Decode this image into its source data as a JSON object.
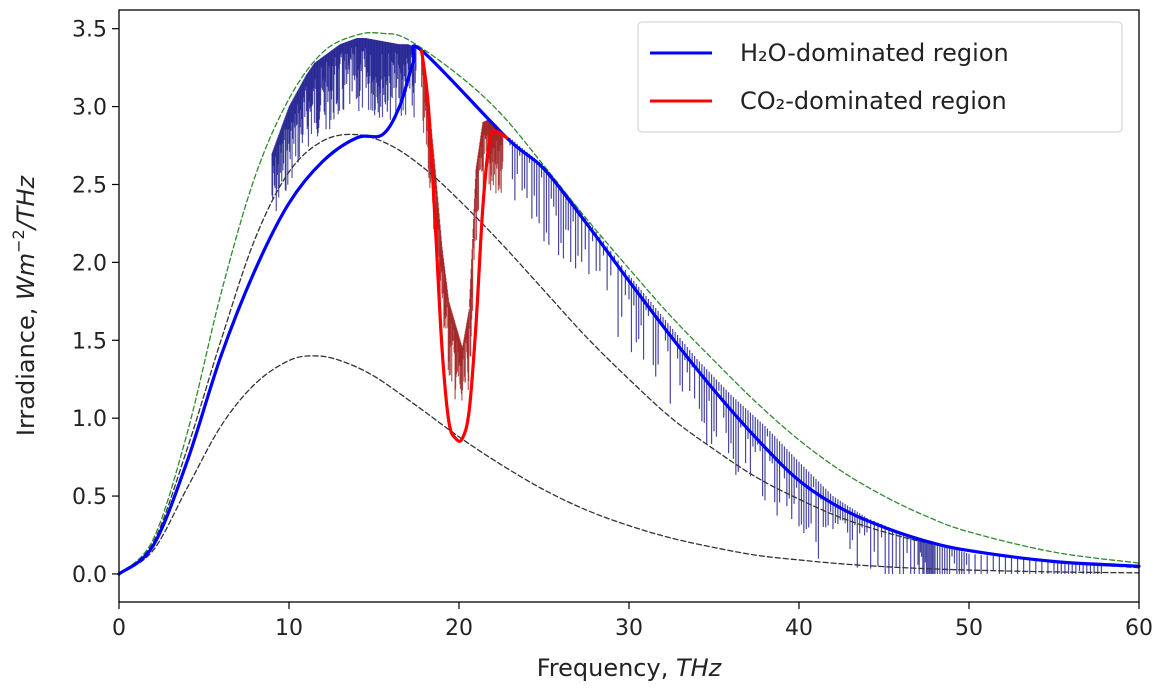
{
  "chart_data": {
    "type": "line",
    "title": "",
    "xlabel": {
      "text": "Frequency, ",
      "unit": "THz"
    },
    "ylabel": {
      "text": "Irradiance, ",
      "unit_base": "Wm",
      "unit_exp": "−2",
      "unit_tail": "/THz"
    },
    "xlim": [
      0,
      60
    ],
    "ylim": [
      -0.18,
      3.62
    ],
    "xticks": [
      0,
      10,
      20,
      30,
      40,
      50,
      60
    ],
    "yticks": [
      0.0,
      0.5,
      1.0,
      1.5,
      2.0,
      2.5,
      3.0,
      3.5
    ],
    "yticks_labels": [
      "0.0",
      "0.5",
      "1.0",
      "1.5",
      "2.0",
      "2.5",
      "3.0",
      "3.5"
    ],
    "grid": false,
    "legend_position": "top-right",
    "series": [
      {
        "name": "H₂O-dominated region",
        "color": "#0000ff",
        "style": "solid",
        "x": [
          0,
          2,
          4,
          6,
          8,
          10,
          12,
          14,
          15.5,
          16.5,
          17.3,
          17.8,
          22.8,
          25,
          27.5,
          30,
          32.5,
          35,
          37.5,
          40,
          42.5,
          45,
          47.5,
          50,
          55,
          60
        ],
        "y": [
          0,
          0.18,
          0.72,
          1.4,
          1.95,
          2.38,
          2.65,
          2.8,
          2.82,
          3.0,
          3.28,
          3.36,
          2.8,
          2.6,
          2.25,
          1.88,
          1.52,
          1.18,
          0.87,
          0.6,
          0.42,
          0.3,
          0.21,
          0.15,
          0.08,
          0.05
        ]
      },
      {
        "name": "CO₂-dominated region",
        "color": "#ff0000",
        "style": "solid",
        "x": [
          17.8,
          18.2,
          18.6,
          19.0,
          19.4,
          19.8,
          20.2,
          20.6,
          21.0,
          21.4,
          21.8,
          22.2,
          22.8
        ],
        "y": [
          3.36,
          3.0,
          2.25,
          1.45,
          0.98,
          0.87,
          0.87,
          1.05,
          1.6,
          2.35,
          2.78,
          2.84,
          2.8
        ]
      },
      {
        "name": "",
        "color": "#2e8b2e",
        "style": "dashed",
        "x": [
          0,
          2,
          4,
          6,
          8,
          10,
          12,
          14,
          15.5,
          17,
          20,
          22.5,
          25,
          27.5,
          30,
          32.5,
          35,
          37.5,
          40,
          42.5,
          45,
          47.5,
          50,
          55,
          60
        ],
        "y": [
          0,
          0.22,
          0.9,
          1.8,
          2.55,
          3.05,
          3.35,
          3.46,
          3.47,
          3.43,
          3.2,
          2.95,
          2.62,
          2.28,
          1.96,
          1.65,
          1.37,
          1.1,
          0.86,
          0.66,
          0.5,
          0.37,
          0.27,
          0.14,
          0.07
        ]
      },
      {
        "name": "",
        "color": "#333333",
        "style": "dashed",
        "x": [
          0,
          2,
          4,
          6,
          8,
          10,
          12,
          14,
          16,
          18,
          20,
          22.5,
          25,
          27.5,
          30,
          32.5,
          35,
          37.5,
          40,
          42.5,
          45,
          47.5,
          50,
          55,
          60
        ],
        "y": [
          0,
          0.2,
          0.8,
          1.5,
          2.15,
          2.58,
          2.78,
          2.82,
          2.75,
          2.6,
          2.4,
          2.12,
          1.82,
          1.52,
          1.25,
          1.0,
          0.8,
          0.62,
          0.48,
          0.36,
          0.27,
          0.2,
          0.15,
          0.08,
          0.04
        ]
      },
      {
        "name": "",
        "color": "#333333",
        "style": "dashed",
        "x": [
          0,
          2,
          4,
          6,
          8,
          10,
          11.5,
          13,
          15,
          17.5,
          20,
          22.5,
          25,
          27.5,
          30,
          32.5,
          35,
          37.5,
          40,
          42.5,
          45,
          47.5,
          50,
          55,
          60
        ],
        "y": [
          0,
          0.15,
          0.55,
          0.95,
          1.22,
          1.37,
          1.4,
          1.37,
          1.27,
          1.08,
          0.88,
          0.7,
          0.54,
          0.41,
          0.31,
          0.23,
          0.17,
          0.12,
          0.09,
          0.065,
          0.047,
          0.034,
          0.025,
          0.013,
          0.007
        ]
      }
    ],
    "spectrum_bands": [
      {
        "color": "#1a1a8c",
        "opacity": 0.75,
        "x": [
          9.0,
          9.5,
          10.0,
          10.5,
          11.0,
          11.5,
          12.0,
          12.5,
          13.0,
          13.5,
          14.0,
          14.5,
          15.0,
          15.5,
          16.0,
          16.5,
          17.0,
          17.5
        ],
        "y": [
          2.7,
          2.85,
          3.0,
          3.1,
          3.2,
          3.28,
          3.32,
          3.36,
          3.4,
          3.42,
          3.44,
          3.44,
          3.43,
          3.42,
          3.41,
          3.4,
          3.4,
          3.38
        ]
      },
      {
        "color": "#a02020",
        "opacity": 0.75,
        "x": [
          17.8,
          18.2,
          18.6,
          19.0,
          19.4,
          19.8,
          20.2,
          20.6,
          21.0,
          21.4,
          21.8,
          22.2,
          22.6
        ],
        "y": [
          3.35,
          3.05,
          2.6,
          2.1,
          1.75,
          1.6,
          1.45,
          1.7,
          2.6,
          2.9,
          2.92,
          2.88,
          2.82
        ]
      },
      {
        "color": "#1a1a8c",
        "opacity": 0.8,
        "x": [
          23,
          25,
          27,
          30,
          32,
          34,
          36,
          38,
          40,
          42,
          44,
          47,
          48,
          50,
          55,
          58
        ],
        "y": [
          2.8,
          2.62,
          2.35,
          1.92,
          1.65,
          1.38,
          1.15,
          0.95,
          0.72,
          0.5,
          0.36,
          0.22,
          0.2,
          0.13,
          0.08,
          0.06
        ]
      }
    ]
  }
}
